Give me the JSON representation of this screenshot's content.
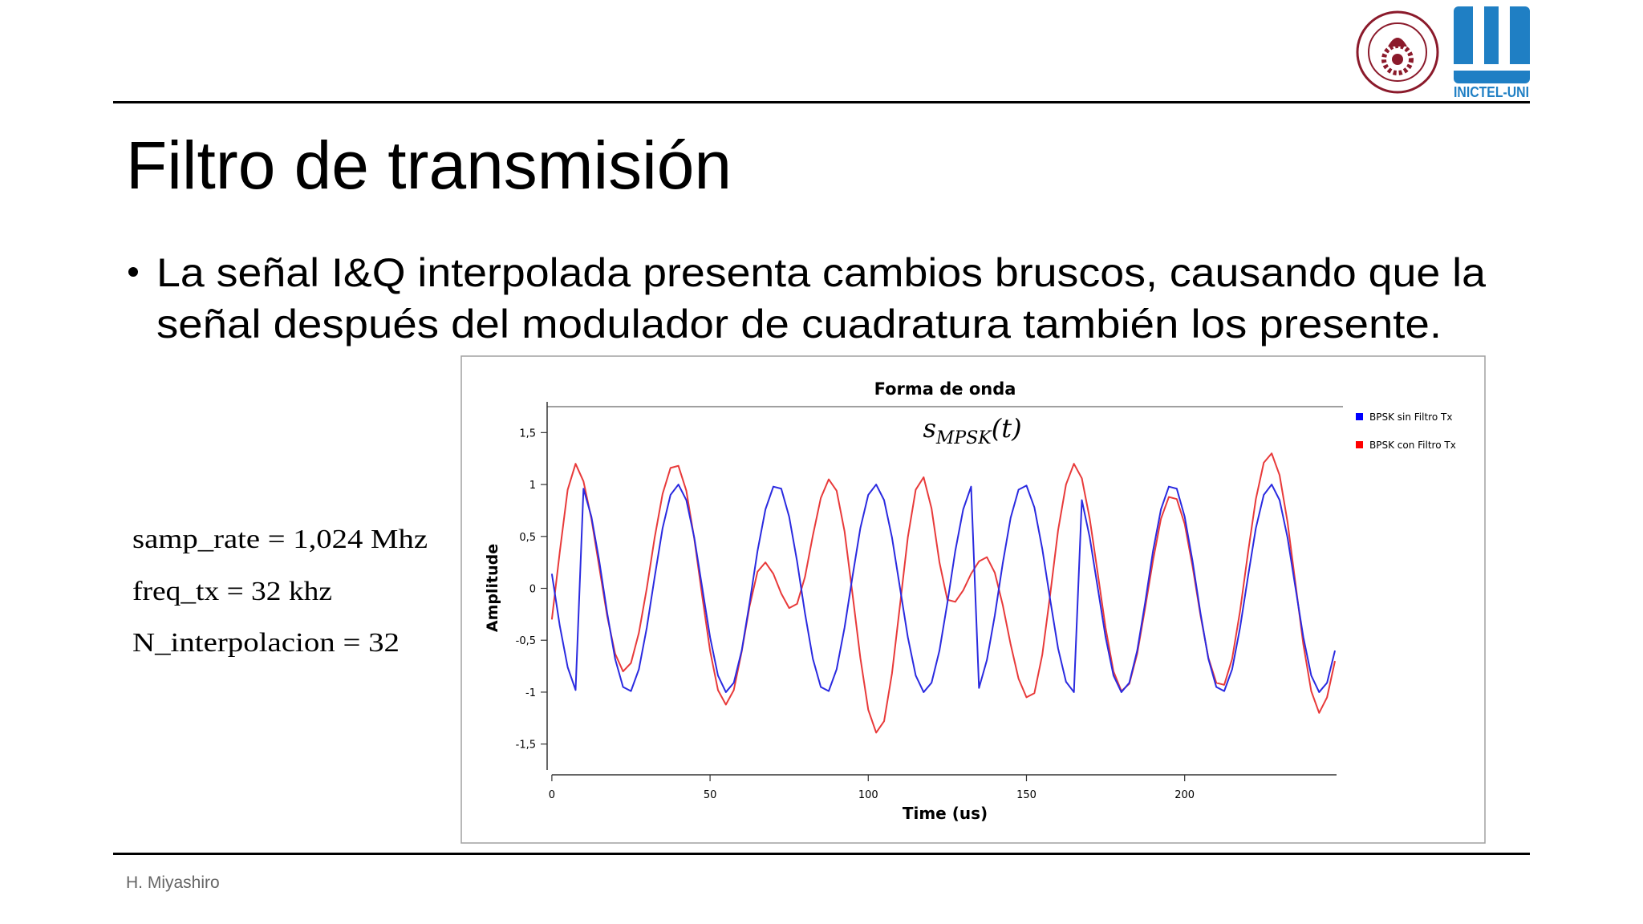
{
  "header": {
    "logo_text": "INICTEL-UNI"
  },
  "slide": {
    "title": "Filtro de transmisión",
    "bullet": [
      "La señal I&Q interpolada presenta cambios bruscos, causando que la",
      "señal después del modulador de cuadratura también los presente."
    ],
    "parameters": [
      "samp_rate = 1,024 Mhz",
      "freq_tx = 32 khz",
      "N_interpolacion = 32"
    ],
    "footer": "H. Miyashiro"
  },
  "chart_data": {
    "type": "line",
    "title": "Forma de onda",
    "annotation": {
      "base": "s",
      "sub": "MPSK",
      "arg": "(t)"
    },
    "x_label": "Time (us)",
    "y_label": "Amplitude",
    "legend": "upper right",
    "xlim": [
      -2,
      248
    ],
    "ylim": [
      -1.75,
      1.75
    ],
    "xticks": [
      0,
      50,
      100,
      150,
      200
    ],
    "yticks": [
      {
        "value": -1.5,
        "label": "-1,5"
      },
      -1,
      {
        "value": -0.5,
        "label": "-0,5"
      },
      0,
      {
        "value": 0.5,
        "label": "0,5"
      },
      1,
      {
        "value": 1.5,
        "label": "1,5"
      }
    ],
    "x": [
      0,
      2.5,
      5,
      7.5,
      10,
      12.5,
      15,
      17.5,
      20,
      22.5,
      25,
      27.5,
      30,
      32.5,
      35,
      37.5,
      40,
      42.5,
      45,
      47.5,
      50,
      52.5,
      55,
      57.5,
      60,
      62.5,
      65,
      67.5,
      70,
      72.5,
      75,
      77.5,
      80,
      82.5,
      85,
      87.5,
      90,
      92.5,
      95,
      97.5,
      100,
      102.5,
      105,
      107.5,
      110,
      112.5,
      115,
      117.5,
      120,
      122.5,
      125,
      127.5,
      130,
      132.5,
      135,
      137.5,
      140,
      142.5,
      145,
      147.5,
      150,
      152.5,
      155,
      157.5,
      160,
      162.5,
      165,
      167.5,
      170,
      172.5,
      175,
      177.5,
      180,
      182.5,
      185,
      187.5,
      190,
      192.5,
      195,
      197.5,
      200,
      202.5,
      205,
      207.5,
      210,
      212.5,
      215,
      217.5,
      220,
      222.5,
      225,
      227.5,
      230,
      232.5,
      235,
      237.5,
      240,
      242.5,
      245,
      247.5
    ],
    "series": [
      {
        "name": "BPSK sin Filtro Tx",
        "color": "#2a2ae0",
        "legend_color": "#0000ff",
        "values": [
          0.14,
          -0.36,
          -0.76,
          -0.98,
          0.96,
          0.69,
          0.26,
          -0.24,
          -0.68,
          -0.95,
          -0.99,
          -0.78,
          -0.38,
          0.11,
          0.58,
          0.9,
          1.0,
          0.85,
          0.49,
          0.01,
          -0.47,
          -0.84,
          -1.0,
          -0.91,
          -0.6,
          -0.14,
          0.36,
          0.76,
          0.98,
          0.96,
          0.69,
          0.26,
          -0.24,
          -0.68,
          -0.95,
          -0.99,
          -0.78,
          -0.38,
          0.11,
          0.58,
          0.9,
          1.0,
          0.85,
          0.49,
          0.01,
          -0.47,
          -0.84,
          -1.0,
          -0.91,
          -0.6,
          -0.14,
          0.36,
          0.76,
          0.98,
          -0.96,
          -0.69,
          -0.26,
          0.24,
          0.68,
          0.95,
          0.99,
          0.78,
          0.38,
          -0.11,
          -0.58,
          -0.9,
          -1.0,
          0.85,
          0.49,
          0.01,
          -0.47,
          -0.84,
          -1.0,
          -0.91,
          -0.6,
          -0.14,
          0.36,
          0.76,
          0.98,
          0.96,
          0.69,
          0.26,
          -0.24,
          -0.68,
          -0.95,
          -0.99,
          -0.78,
          -0.38,
          0.11,
          0.58,
          0.9,
          1.0,
          0.85,
          0.49,
          0.01,
          -0.47,
          -0.84,
          -1.0,
          -0.91,
          -0.6
        ]
      },
      {
        "name": "BPSK con Filtro Tx",
        "color": "#e83a3a",
        "legend_color": "#ff0000",
        "values": [
          -0.3,
          0.35,
          0.95,
          1.2,
          1.03,
          0.67,
          0.2,
          -0.27,
          -0.63,
          -0.8,
          -0.72,
          -0.43,
          0.0,
          0.49,
          0.91,
          1.16,
          1.18,
          0.94,
          0.48,
          -0.07,
          -0.6,
          -0.98,
          -1.12,
          -0.98,
          -0.61,
          -0.17,
          0.16,
          0.25,
          0.14,
          -0.05,
          -0.19,
          -0.15,
          0.11,
          0.51,
          0.87,
          1.05,
          0.94,
          0.55,
          -0.05,
          -0.67,
          -1.17,
          -1.39,
          -1.28,
          -0.82,
          -0.17,
          0.49,
          0.95,
          1.07,
          0.77,
          0.25,
          -0.11,
          -0.13,
          -0.02,
          0.14,
          0.26,
          0.3,
          0.15,
          -0.16,
          -0.54,
          -0.87,
          -1.05,
          -1.01,
          -0.64,
          -0.06,
          0.56,
          1.0,
          1.2,
          1.06,
          0.67,
          0.15,
          -0.38,
          -0.8,
          -0.99,
          -0.92,
          -0.63,
          -0.19,
          0.27,
          0.67,
          0.88,
          0.86,
          0.62,
          0.21,
          -0.26,
          -0.67,
          -0.91,
          -0.93,
          -0.68,
          -0.22,
          0.34,
          0.86,
          1.21,
          1.3,
          1.09,
          0.64,
          0.05,
          -0.54,
          -0.99,
          -1.2,
          -1.05,
          -0.7
        ]
      }
    ]
  }
}
